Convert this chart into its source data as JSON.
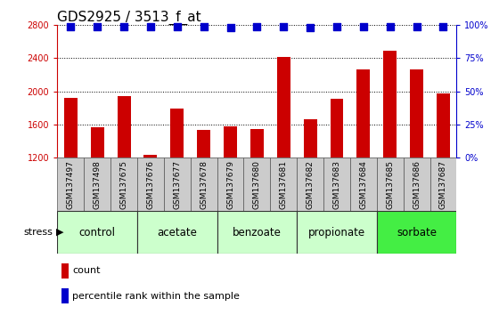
{
  "title": "GDS2925 / 3513_f_at",
  "samples": [
    "GSM137497",
    "GSM137498",
    "GSM137675",
    "GSM137676",
    "GSM137677",
    "GSM137678",
    "GSM137679",
    "GSM137680",
    "GSM137681",
    "GSM137682",
    "GSM137683",
    "GSM137684",
    "GSM137685",
    "GSM137686",
    "GSM137687"
  ],
  "counts": [
    1920,
    1570,
    1940,
    1230,
    1790,
    1530,
    1580,
    1540,
    2420,
    1660,
    1910,
    2270,
    2490,
    2270,
    1980
  ],
  "percentiles": [
    99,
    99,
    99,
    99,
    99,
    99,
    98,
    99,
    99,
    98,
    99,
    99,
    99,
    99,
    99
  ],
  "bar_color": "#cc0000",
  "dot_color": "#0000cc",
  "ylim_left": [
    1200,
    2800
  ],
  "yticks_left": [
    1200,
    1600,
    2000,
    2400,
    2800
  ],
  "ylim_right": [
    0,
    100
  ],
  "yticks_right": [
    0,
    25,
    50,
    75,
    100
  ],
  "ylabel_left_color": "#cc0000",
  "ylabel_right_color": "#0000cc",
  "groups": [
    {
      "label": "control",
      "start": 0,
      "end": 3,
      "color": "#ccffcc"
    },
    {
      "label": "acetate",
      "start": 3,
      "end": 6,
      "color": "#ccffcc"
    },
    {
      "label": "benzoate",
      "start": 6,
      "end": 9,
      "color": "#ccffcc"
    },
    {
      "label": "propionate",
      "start": 9,
      "end": 12,
      "color": "#ccffcc"
    },
    {
      "label": "sorbate",
      "start": 12,
      "end": 15,
      "color": "#44ee44"
    }
  ],
  "stress_label": "stress",
  "legend_count_label": "count",
  "legend_pct_label": "percentile rank within the sample",
  "grid_color": "#000000",
  "background_color": "#ffffff",
  "bar_width": 0.5,
  "dot_size": 40,
  "dot_marker": "s",
  "title_fontsize": 11,
  "tick_fontsize": 7,
  "group_label_fontsize": 8.5,
  "legend_fontsize": 8,
  "sample_label_fontsize": 6.5
}
